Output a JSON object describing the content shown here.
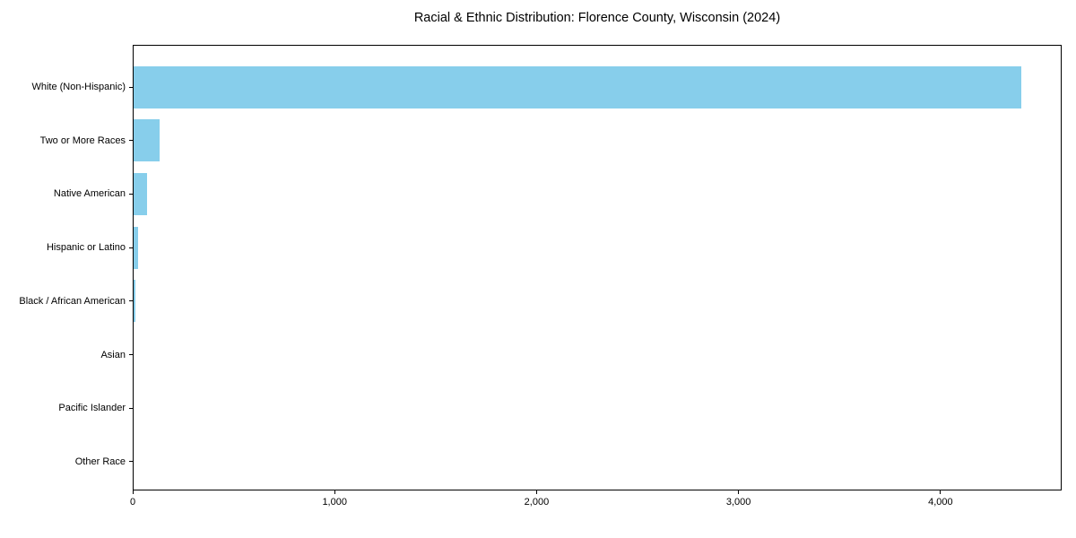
{
  "figure": {
    "background": "#ffffff"
  },
  "chart_data": {
    "type": "bar",
    "orientation": "horizontal",
    "title": "Racial & Ethnic Distribution: Florence County, Wisconsin (2024)",
    "categories": [
      "White (Non-Hispanic)",
      "Two or More Races",
      "Native American",
      "Hispanic or Latino",
      "Black / African American",
      "Asian",
      "Pacific Islander",
      "Other Race"
    ],
    "values": [
      4400,
      135,
      72,
      26,
      13,
      0,
      0,
      0
    ],
    "xlabel": "",
    "ylabel": "",
    "xlim": [
      0,
      4600
    ],
    "x_ticks": [
      0,
      1000,
      2000,
      3000,
      4000
    ],
    "x_tick_labels": [
      "0",
      "1,000",
      "2,000",
      "3,000",
      "4,000"
    ],
    "bar_color": "#87CEEB",
    "axis_color": "#000000",
    "text_color": "#000000",
    "grid": false,
    "legend": null
  }
}
